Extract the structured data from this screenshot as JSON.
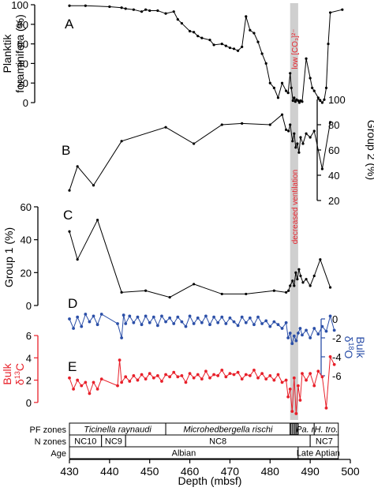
{
  "colors": {
    "black": "#000000",
    "red": "#e8202a",
    "blue": "#2b4fa8",
    "highlight": "#cfcfcf",
    "event_text": "#e8202a"
  },
  "annotations": {
    "low_co3": "low [CO₃]²⁻",
    "decreased_ventilation": "decreased ventilation"
  },
  "chart_data": [
    {
      "type": "line",
      "panel": "A",
      "ylabel": "Planktik foraminifera (%)",
      "ylabel_line1": "Planktik",
      "ylabel_line2": "foraminifera (%)",
      "ylim": [
        0,
        100
      ],
      "yticks": [
        0,
        20,
        40,
        60,
        80,
        100
      ],
      "yaxis_side": "left",
      "color": "#000000",
      "x": [
        430,
        434,
        440,
        443,
        444,
        446,
        448,
        449,
        450,
        452,
        454,
        456,
        457,
        458,
        460,
        461,
        462,
        463,
        465,
        466,
        468,
        469,
        470,
        471,
        472,
        473,
        474,
        475,
        476,
        477,
        478,
        479,
        480,
        481,
        482,
        483,
        484,
        484.5,
        485,
        485.3,
        485.7,
        486,
        486.3,
        486.6,
        487,
        487.3,
        487.6,
        488,
        489,
        490,
        490.5,
        491,
        492,
        492.5,
        493,
        493.5,
        494,
        494.5,
        495,
        498
      ],
      "y": [
        99,
        99,
        98,
        97,
        96,
        95,
        93,
        95,
        94,
        94,
        91,
        93,
        85,
        81,
        73,
        72,
        68,
        66,
        64,
        59,
        60,
        58,
        56,
        55,
        53,
        57,
        88,
        74,
        71,
        62,
        50,
        40,
        20,
        15,
        5,
        20,
        12,
        10,
        30,
        15,
        2,
        5,
        1,
        3,
        2,
        0,
        2,
        1,
        45,
        25,
        15,
        12,
        5,
        2,
        0,
        3,
        15,
        60,
        92,
        95
      ]
    },
    {
      "type": "line",
      "panel": "B",
      "ylabel": "Group 2 (%)",
      "ylim": [
        20,
        100
      ],
      "yticks": [
        20,
        40,
        60,
        80,
        100
      ],
      "yaxis_side": "right",
      "color": "#000000",
      "x": [
        430,
        432,
        436,
        443,
        454,
        461,
        468,
        473,
        480,
        483,
        484,
        484.6,
        485,
        485.6,
        486,
        486.4,
        486.8,
        487.2,
        487.6,
        488.2,
        489,
        490,
        491,
        493,
        495
      ],
      "y": [
        28,
        47,
        32,
        67,
        78,
        65,
        80,
        81,
        80,
        88,
        76,
        75,
        80,
        67,
        73,
        62,
        65,
        58,
        70,
        65,
        73,
        70,
        75,
        45,
        82
      ]
    },
    {
      "type": "line",
      "panel": "C",
      "ylabel": "Group 1 (%)",
      "ylim": [
        0,
        60
      ],
      "yticks": [
        0,
        20,
        40,
        60
      ],
      "yaxis_side": "left",
      "color": "#000000",
      "x": [
        430,
        432,
        437,
        443,
        449,
        455,
        461,
        468,
        474,
        481,
        484,
        484.6,
        485,
        485.6,
        486,
        486.4,
        486.8,
        487.2,
        487.6,
        488.2,
        489,
        490,
        491,
        492.5,
        495
      ],
      "y": [
        45,
        28,
        52,
        8,
        9,
        5,
        13,
        7,
        7,
        9,
        8,
        9,
        12,
        15,
        12,
        20,
        16,
        22,
        18,
        14,
        16,
        12,
        18,
        28,
        11
      ]
    },
    {
      "type": "scatter",
      "panel": "D",
      "ylabel": "Bulk δ18O",
      "ylabel_line1": "Bulk",
      "ylabel_line2": "δ18O",
      "ylim": [
        -7,
        1
      ],
      "yticks": [
        0,
        -2,
        -4,
        -6
      ],
      "yaxis_side": "right",
      "color": "#2b4fa8",
      "x": [
        430,
        431,
        432,
        433,
        434,
        435,
        436,
        437,
        438,
        442,
        443,
        443.5,
        444,
        445,
        446,
        447,
        448,
        449,
        450,
        451,
        452,
        453,
        454,
        455,
        456,
        457,
        458,
        459,
        460,
        461,
        462,
        463,
        464,
        465,
        466,
        467,
        468,
        469,
        470,
        471,
        472,
        473,
        474,
        475,
        476,
        477,
        478,
        479,
        480,
        481,
        482,
        483,
        484,
        484.5,
        485,
        485.5,
        486,
        486.5,
        487,
        487.5,
        488,
        489,
        490,
        491,
        492,
        493,
        494,
        495,
        496
      ],
      "y": [
        0,
        -1,
        0.2,
        -0.8,
        0.5,
        -0.3,
        0.3,
        -0.6,
        0.5,
        -0.5,
        -2,
        0.4,
        -0.5,
        0.3,
        -0.4,
        0.2,
        -0.6,
        0.3,
        -0.4,
        0.2,
        -0.7,
        0.3,
        -0.3,
        0.1,
        -0.5,
        0.2,
        -0.3,
        -0.8,
        0.3,
        -0.5,
        0.1,
        -0.4,
        0.3,
        -0.6,
        0.2,
        -0.4,
        0.2,
        -0.5,
        0.1,
        -0.3,
        -0.7,
        0.2,
        -0.4,
        0.1,
        -0.6,
        0.2,
        -0.5,
        -0.2,
        -0.8,
        -0.3,
        -0.6,
        -1.0,
        -0.4,
        -2.0,
        -1.5,
        -2.6,
        -1.8,
        -2.3,
        -1.5,
        -1.0,
        -1.7,
        -1.2,
        -2.0,
        -1.0,
        -1.6,
        -0.8,
        -1.3,
        0.3,
        -1.2
      ]
    },
    {
      "type": "scatter",
      "panel": "E",
      "ylabel": "Bulk δ13C",
      "ylabel_line1": "Bulk",
      "ylabel_line2": "δ13C",
      "ylim": [
        -1.5,
        6.5
      ],
      "yticks": [
        0,
        2,
        4,
        6
      ],
      "yaxis_side": "left",
      "color": "#e8202a",
      "x": [
        430,
        431,
        432,
        433,
        434,
        435,
        436,
        437,
        438,
        442,
        442.5,
        443,
        444,
        445,
        446,
        447,
        448,
        449,
        450,
        451,
        452,
        453,
        454,
        455,
        456,
        457,
        458,
        459,
        460,
        461,
        462,
        463,
        464,
        465,
        466,
        467,
        468,
        469,
        470,
        471,
        472,
        473,
        474,
        475,
        476,
        477,
        478,
        479,
        480,
        481,
        482,
        483,
        484,
        484.5,
        485,
        485.5,
        486,
        486.5,
        487,
        487.5,
        488,
        489,
        490,
        491,
        492,
        493,
        494,
        495,
        496
      ],
      "y": [
        2.2,
        1.2,
        2.0,
        1.5,
        1.8,
        0.8,
        1.8,
        1.2,
        2.1,
        1.5,
        3.8,
        1.8,
        2.3,
        1.9,
        2.4,
        2.0,
        2.5,
        2.1,
        2.6,
        2.2,
        2.4,
        1.9,
        2.5,
        2.3,
        2.7,
        2.3,
        2.4,
        1.8,
        2.6,
        2.2,
        2.5,
        2.1,
        2.8,
        2.2,
        2.5,
        2.4,
        2.9,
        2.3,
        2.6,
        2.5,
        2.7,
        2.1,
        2.5,
        2.4,
        2.9,
        2.2,
        2.6,
        2.1,
        2.4,
        2.0,
        2.5,
        1.8,
        2.0,
        0.5,
        1.2,
        -0.8,
        2.2,
        -1.0,
        1.5,
        0.2,
        2.6,
        2.0,
        2.6,
        1.5,
        2.8,
        2.3,
        -0.5,
        4.1,
        3.4
      ]
    }
  ],
  "xaxis": {
    "label": "Depth (mbsf)",
    "xlim": [
      430,
      500
    ],
    "ticks": [
      430,
      440,
      450,
      460,
      470,
      480,
      490,
      500
    ]
  },
  "highlight_band": {
    "x_start": 485,
    "x_end": 487
  },
  "panel_letters": [
    "A",
    "B",
    "C",
    "D",
    "E"
  ],
  "zones": {
    "rows": [
      {
        "label": "PF zones",
        "segments": [
          {
            "text": "Ticinella raynaudi",
            "start": 430,
            "end": 454,
            "italic": true
          },
          {
            "text": "Microhedbergella rischi",
            "start": 454,
            "end": 485,
            "italic": true
          },
          {
            "text": "",
            "start": 485,
            "end": 487,
            "italic": false,
            "hatched": true
          },
          {
            "text": "Pa. r.",
            "start": 487,
            "end": 491,
            "italic": true
          },
          {
            "text": "H. tro.",
            "start": 491,
            "end": 497,
            "italic": true
          }
        ]
      },
      {
        "label": "N zones",
        "segments": [
          {
            "text": "NC10",
            "start": 430,
            "end": 438,
            "italic": false
          },
          {
            "text": "NC9",
            "start": 438,
            "end": 444,
            "italic": false
          },
          {
            "text": "NC8",
            "start": 444,
            "end": 490,
            "italic": false
          },
          {
            "text": "NC7",
            "start": 490,
            "end": 497,
            "italic": false
          }
        ]
      },
      {
        "label": "Age",
        "segments": [
          {
            "text": "Albian",
            "start": 430,
            "end": 487,
            "italic": false
          },
          {
            "text": "Late Aptian",
            "start": 487,
            "end": 497,
            "italic": false
          }
        ]
      }
    ]
  }
}
